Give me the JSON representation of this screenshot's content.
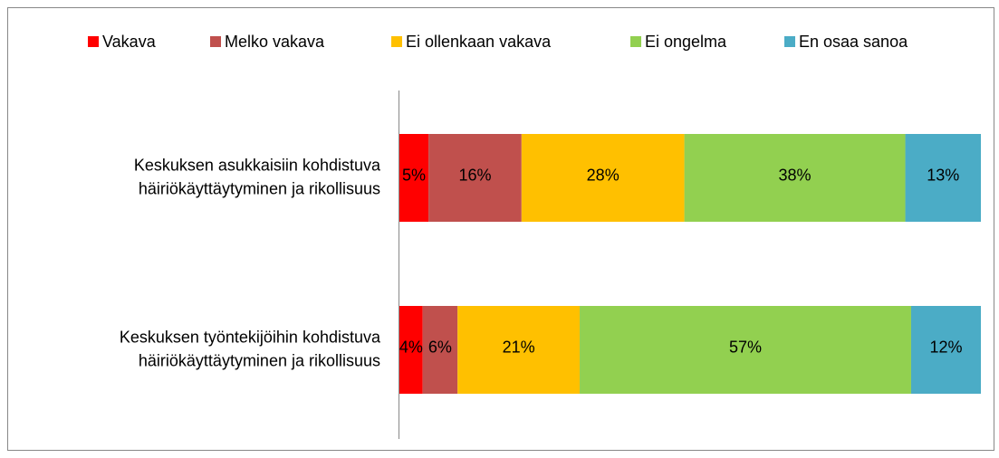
{
  "chart_data": {
    "type": "bar",
    "orientation": "horizontal",
    "stacked": true,
    "categories": [
      "Keskuksen asukkaisiin kohdistuva\nhäiriökäyttäytyminen ja rikollisuus",
      "Keskuksen työntekijöihin kohdistuva\nhäiriökäyttäytyminen ja rikollisuus"
    ],
    "xlim": [
      0,
      100
    ],
    "legend": "top",
    "series": [
      {
        "name": "Vakava",
        "color": "#ff0000",
        "values": [
          5,
          4
        ],
        "value_labels": [
          "5%",
          "4%"
        ]
      },
      {
        "name": "Melko vakava",
        "color": "#c0504d",
        "values": [
          16,
          6
        ],
        "value_labels": [
          "16%",
          "6%"
        ]
      },
      {
        "name": "Ei ollenkaan vakava",
        "color": "#ffc000",
        "values": [
          28,
          21
        ],
        "value_labels": [
          "28%",
          "21%"
        ]
      },
      {
        "name": "Ei ongelma",
        "color": "#92d050",
        "values": [
          38,
          57
        ],
        "value_labels": [
          "38%",
          "57%"
        ]
      },
      {
        "name": "En osaa sanoa",
        "color": "#4bacc6",
        "values": [
          13,
          12
        ],
        "value_labels": [
          "13%",
          "12%"
        ]
      }
    ]
  }
}
